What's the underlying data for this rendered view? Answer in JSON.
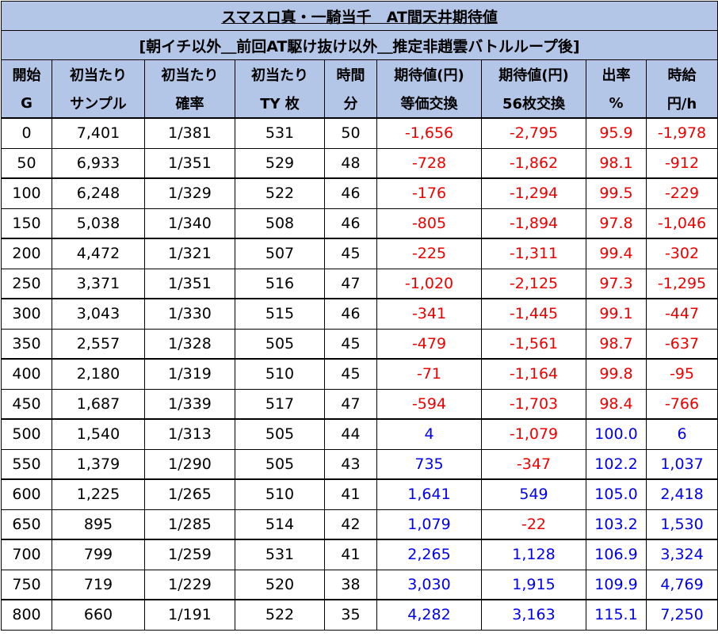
{
  "title": "スマスロ真・一騎当千　AT間天井期待値",
  "subtitle": "[朝イチ以外＿前回AT駆け抜け以外＿推定非趙雲バトルループ後]",
  "headers": [
    [
      "開始",
      "G"
    ],
    [
      "初当たり",
      "サンプル"
    ],
    [
      "初当たり",
      "確率"
    ],
    [
      "初当たり",
      "TY 枚"
    ],
    [
      "時間",
      "分"
    ],
    [
      "期待値(円)",
      "等価交換"
    ],
    [
      "期待値(円)",
      "56枚交換"
    ],
    [
      "出率",
      "%"
    ],
    [
      "時給",
      "円/h"
    ]
  ],
  "rows": [
    [
      "0",
      "7,401",
      "1/381",
      "531",
      "50",
      "-1,656",
      "-2,795",
      "95.9",
      "-1,978"
    ],
    [
      "50",
      "6,933",
      "1/351",
      "529",
      "48",
      "-728",
      "-1,862",
      "98.1",
      "-912"
    ],
    [
      "100",
      "6,248",
      "1/329",
      "522",
      "46",
      "-176",
      "-1,294",
      "99.5",
      "-229"
    ],
    [
      "150",
      "5,038",
      "1/340",
      "508",
      "46",
      "-805",
      "-1,894",
      "97.8",
      "-1,046"
    ],
    [
      "200",
      "4,472",
      "1/321",
      "507",
      "45",
      "-225",
      "-1,311",
      "99.4",
      "-302"
    ],
    [
      "250",
      "3,371",
      "1/351",
      "516",
      "47",
      "-1,020",
      "-2,125",
      "97.3",
      "-1,295"
    ],
    [
      "300",
      "3,043",
      "1/330",
      "515",
      "46",
      "-341",
      "-1,445",
      "99.1",
      "-447"
    ],
    [
      "350",
      "2,557",
      "1/328",
      "505",
      "45",
      "-479",
      "-1,561",
      "98.7",
      "-637"
    ],
    [
      "400",
      "2,180",
      "1/319",
      "510",
      "45",
      "-71",
      "-1,164",
      "99.8",
      "-95"
    ],
    [
      "450",
      "1,687",
      "1/339",
      "517",
      "47",
      "-594",
      "-1,703",
      "98.4",
      "-766"
    ],
    [
      "500",
      "1,540",
      "1/313",
      "505",
      "44",
      "4",
      "-1,079",
      "100.0",
      "6"
    ],
    [
      "550",
      "1,379",
      "1/290",
      "505",
      "43",
      "735",
      "-347",
      "102.2",
      "1,037"
    ],
    [
      "600",
      "1,225",
      "1/265",
      "510",
      "41",
      "1,641",
      "549",
      "105.0",
      "2,418"
    ],
    [
      "650",
      "895",
      "1/285",
      "514",
      "42",
      "1,079",
      "-22",
      "103.2",
      "1,530"
    ],
    [
      "700",
      "799",
      "1/259",
      "531",
      "41",
      "2,265",
      "1,128",
      "106.9",
      "3,324"
    ],
    [
      "750",
      "719",
      "1/229",
      "520",
      "38",
      "3,030",
      "1,915",
      "109.9",
      "4,769"
    ],
    [
      "800",
      "660",
      "1/191",
      "522",
      "35",
      "4,282",
      "3,163",
      "115.1",
      "7,250"
    ]
  ],
  "colors": {
    "header_bg": "#b4c6e7",
    "negative": "#ee0000",
    "positive": "#0000ee"
  }
}
